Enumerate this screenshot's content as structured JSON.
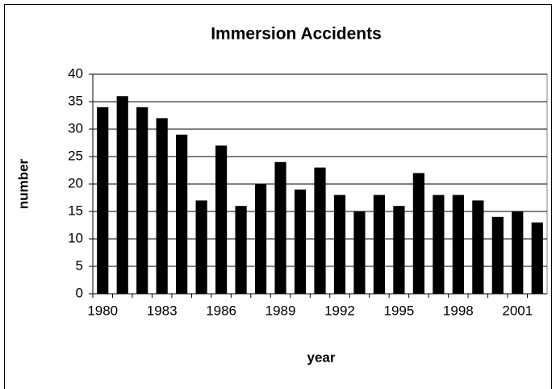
{
  "chart_data": {
    "type": "bar",
    "title": "Immersion Accidents",
    "x_label": "year",
    "y_label": "number",
    "categories": [
      1980,
      null,
      null,
      1983,
      null,
      null,
      1986,
      null,
      null,
      1989,
      null,
      null,
      1992,
      null,
      null,
      1995,
      null,
      null,
      1998,
      null,
      null,
      2001,
      null
    ],
    "values": [
      34,
      36,
      34,
      32,
      29,
      17,
      27,
      16,
      20,
      24,
      19,
      23,
      18,
      15,
      18,
      16,
      22,
      18,
      18,
      17,
      14,
      15,
      13
    ],
    "color": "#000000",
    "ylim": [
      0,
      40
    ],
    "yticks": [
      0,
      5,
      10,
      15,
      20,
      25,
      30,
      35,
      40
    ],
    "grid": true
  }
}
